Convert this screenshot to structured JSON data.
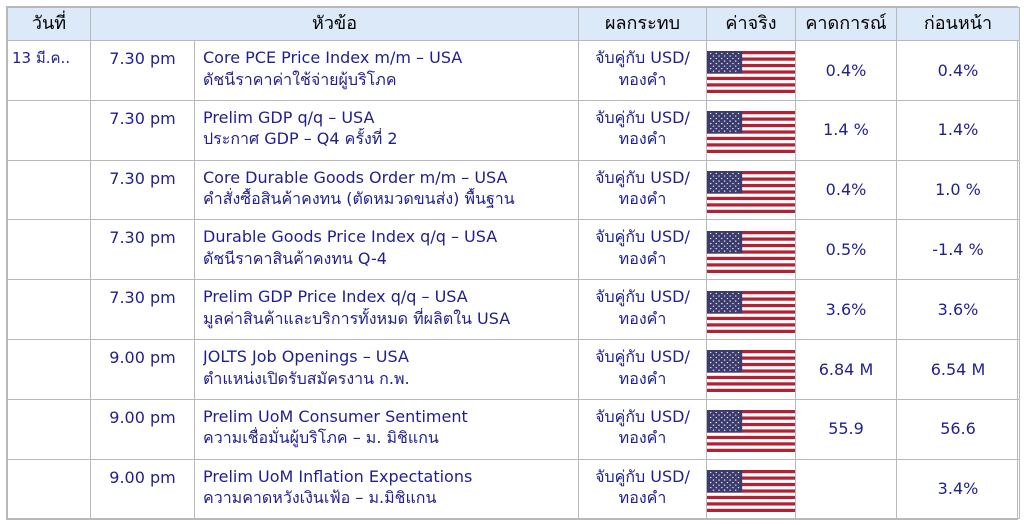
{
  "table": {
    "headers": {
      "date": "วันที่",
      "topic": "หัวข้อ",
      "impact": "ผลกระทบ",
      "actual": "ค่าจริง",
      "forecast": "คาดการณ์",
      "previous": "ก่อนหน้า"
    },
    "rows": [
      {
        "date": "13 มี.ค..",
        "time": "7.30 pm",
        "title": "Core PCE Price Index m/m – USA",
        "subtitle": "ดัชนีราคาค่าใช้จ่ายผู้บริโภค",
        "impact_line1": "จับคู่กับ USD/",
        "impact_line2": "ทองคำ",
        "actual_icon": "us-flag-icon",
        "forecast": "0.4%",
        "previous": "0.4%"
      },
      {
        "date": "",
        "time": "7.30 pm",
        "title": "Prelim GDP q/q – USA",
        "subtitle": "ประกาศ GDP – Q4 ครั้งที่ 2",
        "impact_line1": "จับคู่กับ USD/",
        "impact_line2": "ทองคำ",
        "actual_icon": "us-flag-icon",
        "forecast": "1.4 %",
        "previous": "1.4%"
      },
      {
        "date": "",
        "time": "7.30 pm",
        "title": "Core Durable Goods Order m/m – USA",
        "subtitle": "คำสั่งซื้อสินค้าคงทน (ตัดหมวดขนส่ง) พื้นฐาน",
        "impact_line1": "จับคู่กับ USD/",
        "impact_line2": "ทองคำ",
        "actual_icon": "us-flag-icon",
        "forecast": "0.4%",
        "previous": "1.0 %"
      },
      {
        "date": "",
        "time": "7.30 pm",
        "title": "Durable Goods Price Index q/q – USA",
        "subtitle": "ดัชนีราคาสินค้าคงทน Q-4",
        "impact_line1": "จับคู่กับ USD/",
        "impact_line2": "ทองคำ",
        "actual_icon": "us-flag-icon",
        "forecast": "0.5%",
        "previous": "-1.4 %"
      },
      {
        "date": "",
        "time": "7.30 pm",
        "title": "Prelim GDP Price Index q/q – USA",
        "subtitle": "มูลค่าสินค้าและบริการทั้งหมด ที่ผลิตใน USA",
        "impact_line1": "จับคู่กับ USD/",
        "impact_line2": "ทองคำ",
        "actual_icon": "us-flag-icon",
        "forecast": "3.6%",
        "previous": "3.6%"
      },
      {
        "date": "",
        "time": "9.00 pm",
        "title": "JOLTS Job Openings – USA",
        "subtitle": "ตำแหน่งเปิดรับสมัครงาน ก.พ.",
        "impact_line1": "จับคู่กับ USD/",
        "impact_line2": "ทองคำ",
        "actual_icon": "us-flag-icon",
        "forecast": "6.84 M",
        "previous": "6.54 M"
      },
      {
        "date": "",
        "time": "9.00 pm",
        "title": "Prelim UoM Consumer Sentiment",
        "subtitle": "ความเชื่อมั่นผู้บริโภค – ม. มิชิแกน",
        "impact_line1": "จับคู่กับ USD/",
        "impact_line2": "ทองคำ",
        "actual_icon": "us-flag-icon",
        "forecast": "55.9",
        "previous": "56.6"
      },
      {
        "date": "",
        "time": "9.00 pm",
        "title": "Prelim UoM Inflation Expectations",
        "subtitle": "ความคาดหวังเงินเฟ้อ – ม.มิชิแกน",
        "impact_line1": "จับคู่กับ USD/",
        "impact_line2": "ทองคำ",
        "actual_icon": "us-flag-icon",
        "forecast": "",
        "previous": "3.4%"
      }
    ]
  },
  "colors": {
    "header_bg": "#dbe9f8",
    "text_blue": "#1f1f8f",
    "border": "#b9b9b9",
    "flag_red": "#b22234",
    "flag_blue": "#3c3b6e"
  }
}
